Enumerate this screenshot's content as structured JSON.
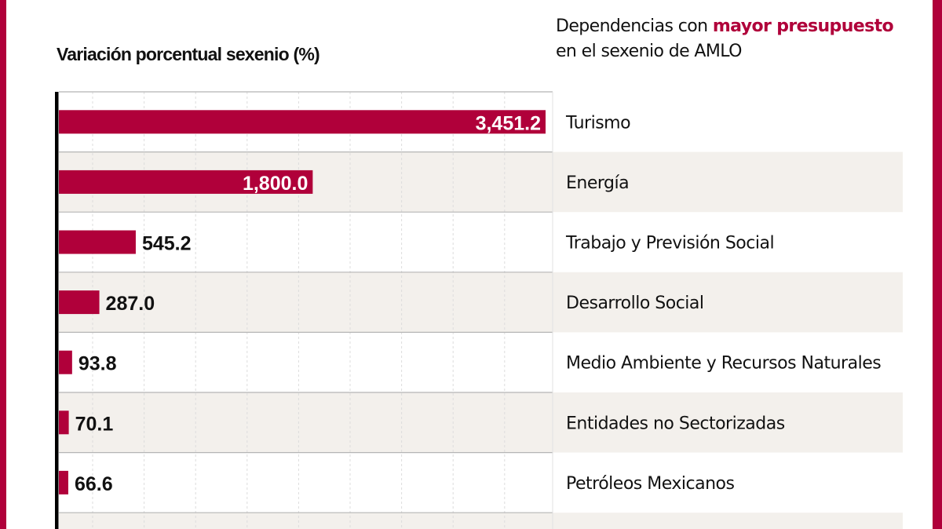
{
  "header": {
    "prefix": "Dependencias con ",
    "highlight": "mayor presupuesto",
    "suffix": "en el sexenio de AMLO"
  },
  "chart_data": {
    "type": "bar",
    "orientation": "horizontal",
    "title": "Dependencias con mayor presupuesto en el sexenio de AMLO",
    "xlabel": "Variación porcentual sexenio (%)",
    "categories": [
      "Turismo",
      "Energía",
      "Trabajo y Previsión Social",
      "Desarrollo Social",
      "Medio Ambiente y Recursos Naturales",
      "Entidades no Sectorizadas",
      "Petróleos Mexicanos"
    ],
    "values": [
      3451.2,
      1800.0,
      545.2,
      287.0,
      93.8,
      70.1,
      66.6
    ],
    "labels": [
      "3,451.2",
      "1,800.0",
      "545.2",
      "287.0",
      "93.8",
      "70.1",
      "66.6"
    ],
    "xlim": [
      0,
      3500
    ],
    "grid": true,
    "colors": {
      "bar": "#b0003a",
      "row_alt": "#f3f0ec",
      "border": "#b0003a"
    }
  }
}
